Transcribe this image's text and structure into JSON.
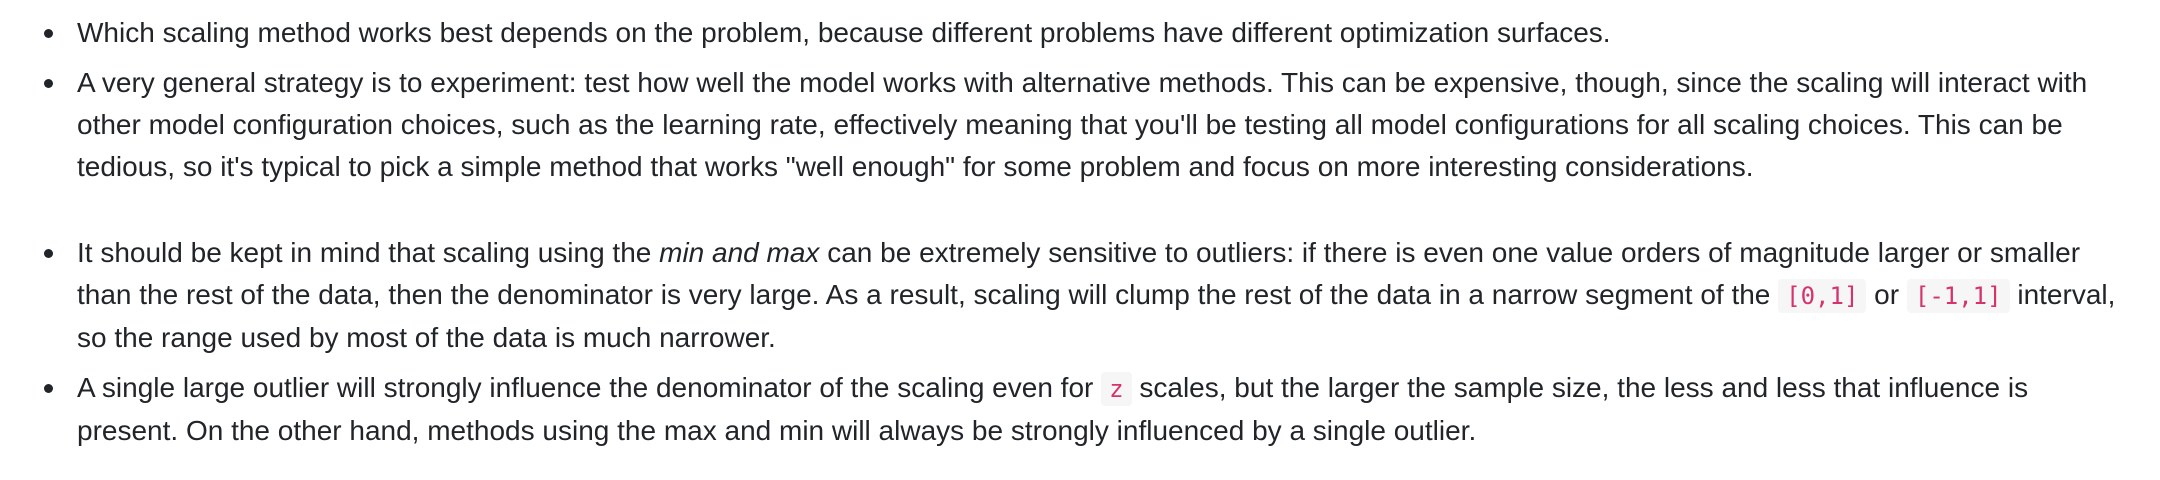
{
  "list1": {
    "item1": {
      "text": "Which scaling method works best depends on the problem, because different problems have different optimization surfaces."
    },
    "item2": {
      "text": "A very general strategy is to experiment: test how well the model works with alternative methods. This can be expensive, though, since the scaling will interact with other model configuration choices, such as the learning rate, effectively meaning that you'll be testing all model configurations for all scaling choices. This can be tedious, so it's typical to pick a simple method that works \"well enough\" for some problem and focus on more interesting considerations."
    }
  },
  "list2": {
    "item3": {
      "text_a": "It should be kept in mind that scaling using the ",
      "emphasis": "min and max",
      "text_b": " can be extremely sensitive to outliers: if there is even one value orders of magnitude larger or smaller than the rest of the data, then the denominator is very large. As a result, scaling will clump the rest of the data in a narrow segment of the ",
      "code_1": "[0,1]",
      "text_c": " or ",
      "code_2": "[-1,1]",
      "text_d": " interval, so the range used by most of the data is much narrower."
    },
    "item4": {
      "text_a": "A single large outlier will strongly influence the denominator of the scaling even for ",
      "code_1": "z",
      "text_b": " scales, but the larger the sample size, the less and less that influence is present. On the other hand, methods using the max and min will always be strongly influenced by a single outlier."
    }
  }
}
